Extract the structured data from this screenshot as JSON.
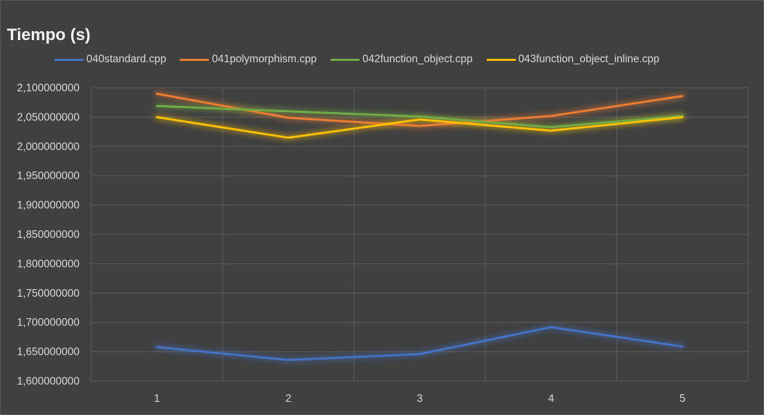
{
  "chart_data": {
    "type": "line",
    "title": "Tiempo (s)",
    "xlabel": "",
    "ylabel": "",
    "x": [
      1,
      2,
      3,
      4,
      5
    ],
    "x_tick_labels": [
      "1",
      "2",
      "3",
      "4",
      "5"
    ],
    "ylim": [
      1.6,
      2.1
    ],
    "y_ticks": [
      1.6,
      1.65,
      1.7,
      1.75,
      1.8,
      1.85,
      1.9,
      1.95,
      2.0,
      2.05,
      2.1
    ],
    "y_tick_labels": [
      "1,600000000",
      "1,650000000",
      "1,700000000",
      "1,750000000",
      "1,800000000",
      "1,850000000",
      "1,900000000",
      "1,950000000",
      "2,000000000",
      "2,050000000",
      "2,100000000"
    ],
    "grid": true,
    "legend_position": "top",
    "series": [
      {
        "name": "040standard.cpp",
        "color": "#4472c4",
        "values": [
          1.658,
          1.636,
          1.646,
          1.692,
          1.659
        ]
      },
      {
        "name": "041polymorphism.cpp",
        "color": "#ed7d31",
        "values": [
          2.09,
          2.049,
          2.035,
          2.052,
          2.086
        ]
      },
      {
        "name": "042function_object.cpp",
        "color": "#70ad47",
        "values": [
          2.069,
          2.06,
          2.051,
          2.033,
          2.052
        ]
      },
      {
        "name": "043function_object_inline.cpp",
        "color": "#ffc000",
        "values": [
          2.05,
          2.015,
          2.046,
          2.027,
          2.05
        ]
      }
    ]
  }
}
